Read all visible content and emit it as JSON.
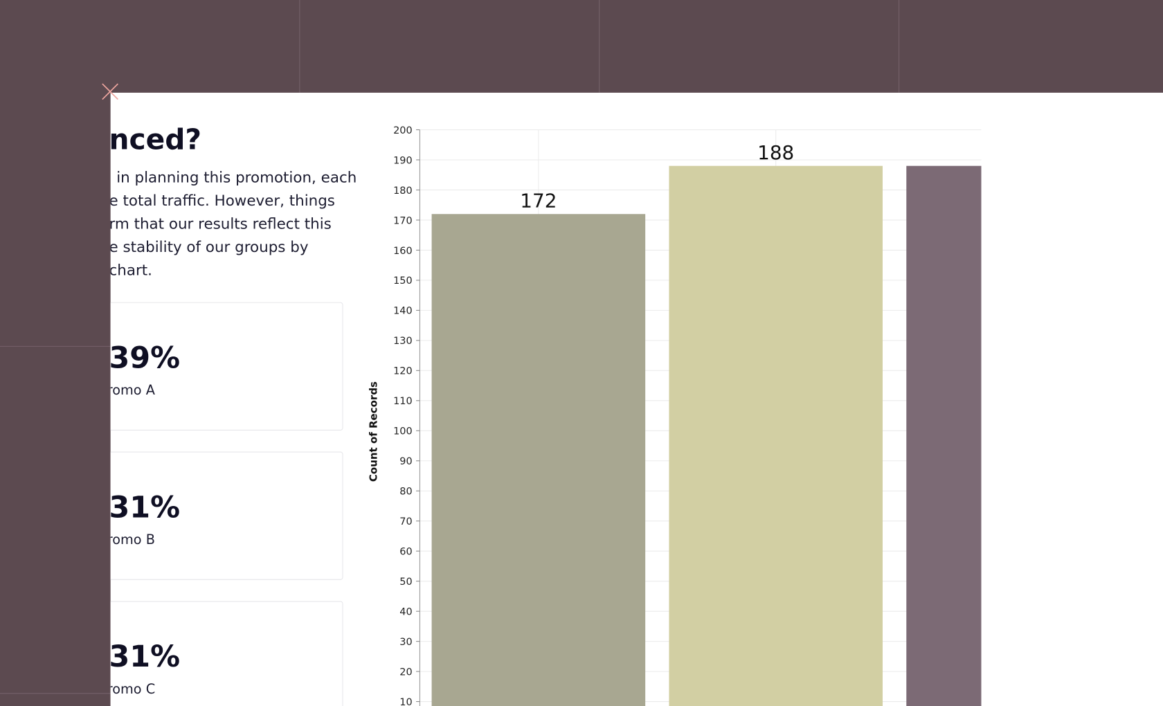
{
  "panel": {
    "heading": "nced?",
    "paragraph": [
      "in planning this promotion, each",
      "e total traffic. However, things",
      "rm that our results reflect this",
      "e stability of our groups by",
      "chart."
    ]
  },
  "cards": [
    {
      "value": "39%",
      "label": "promo A"
    },
    {
      "value": "31%",
      "label": "promo B"
    },
    {
      "value": "31%",
      "label": "promo C"
    }
  ],
  "chart_data": {
    "type": "bar",
    "y_label": "Count of Records",
    "categories": [
      null,
      null,
      null
    ],
    "values": [
      172,
      188,
      188
    ],
    "colors": [
      "#a8a791",
      "#d2cfa3",
      "#7c6a75"
    ],
    "ylim": [
      0,
      200
    ],
    "yticks": [
      10,
      20,
      30,
      40,
      50,
      60,
      70,
      80,
      90,
      100,
      110,
      120,
      130,
      140,
      150,
      160,
      170,
      180,
      190,
      200
    ],
    "grid": true
  }
}
